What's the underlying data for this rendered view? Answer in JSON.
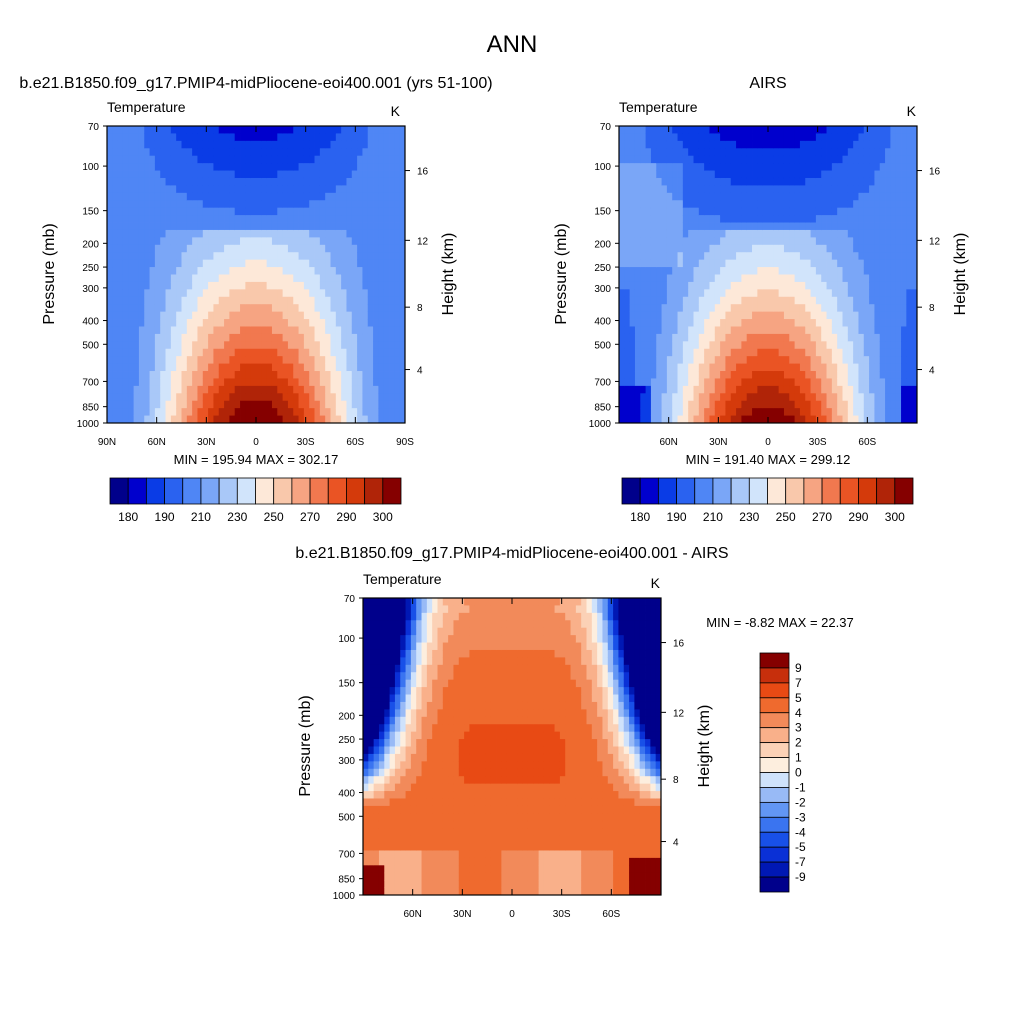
{
  "figure_title": "ANN",
  "colors": {
    "abs_scale": [
      "#00008b",
      "#0000cd",
      "#0a3ce6",
      "#2a62f0",
      "#4f86f5",
      "#7aa6f7",
      "#a9c8f8",
      "#d1e4fb",
      "#fde8d8",
      "#f9c8ab",
      "#f6a482",
      "#f1784f",
      "#ea5424",
      "#d43a0b",
      "#b02408",
      "#850000"
    ],
    "diff_scale": [
      "#00008b",
      "#0018b4",
      "#0a30d6",
      "#1850e8",
      "#3a74f0",
      "#6296f4",
      "#98baf6",
      "#cfe2fb",
      "#fdeede",
      "#fbd1b6",
      "#f9b08a",
      "#f28a5a",
      "#ef6a2e",
      "#e84a14",
      "#c72f0c",
      "#850000"
    ]
  },
  "chart_data": [
    {
      "type": "heatmap",
      "title": "b.e21.B1850.f09_g17.PMIP4-midPliocene-eoi400.001 (yrs 51-100)",
      "subtitle_left": "Temperature",
      "subtitle_right": "K",
      "ylabel": "Pressure (mb)",
      "ylabel_right": "Height (km)",
      "x_ticks": [
        "90N",
        "60N",
        "30N",
        "0",
        "30S",
        "60S",
        "90S"
      ],
      "y_ticks": [
        "70",
        "100",
        "150",
        "200",
        "250",
        "300",
        "400",
        "500",
        "700",
        "850",
        "1000"
      ],
      "right_ticks": [
        "16",
        "12",
        "8",
        "4"
      ],
      "stats": "MIN = 195.94  MAX = 302.17",
      "colorbar_labels": [
        "180",
        "190",
        "210",
        "230",
        "250",
        "270",
        "290",
        "300"
      ]
    },
    {
      "type": "heatmap",
      "title": "AIRS",
      "subtitle_left": "Temperature",
      "subtitle_right": "K",
      "ylabel": "Pressure (mb)",
      "ylabel_right": "Height (km)",
      "x_ticks": [
        "60N",
        "30N",
        "0",
        "30S",
        "60S"
      ],
      "y_ticks": [
        "70",
        "100",
        "150",
        "200",
        "250",
        "300",
        "400",
        "500",
        "700",
        "850",
        "1000"
      ],
      "right_ticks": [
        "16",
        "12",
        "8",
        "4"
      ],
      "stats": "MIN = 191.40  MAX = 299.12",
      "colorbar_labels": [
        "180",
        "190",
        "210",
        "230",
        "250",
        "270",
        "290",
        "300"
      ]
    },
    {
      "type": "heatmap",
      "title": "b.e21.B1850.f09_g17.PMIP4-midPliocene-eoi400.001 - AIRS",
      "subtitle_left": "Temperature",
      "subtitle_right": "K",
      "ylabel": "Pressure (mb)",
      "ylabel_right": "Height (km)",
      "x_ticks": [
        "60N",
        "30N",
        "0",
        "30S",
        "60S"
      ],
      "y_ticks": [
        "70",
        "100",
        "150",
        "200",
        "250",
        "300",
        "400",
        "500",
        "700",
        "850",
        "1000"
      ],
      "right_ticks": [
        "16",
        "12",
        "8",
        "4"
      ],
      "stats": "MIN =  -8.82  MAX =  22.37",
      "colorbar_labels": [
        "9",
        "7",
        "5",
        "4",
        "3",
        "2",
        "1",
        "0",
        "-1",
        "-2",
        "-3",
        "-4",
        "-5",
        "-7",
        "-9"
      ]
    }
  ]
}
